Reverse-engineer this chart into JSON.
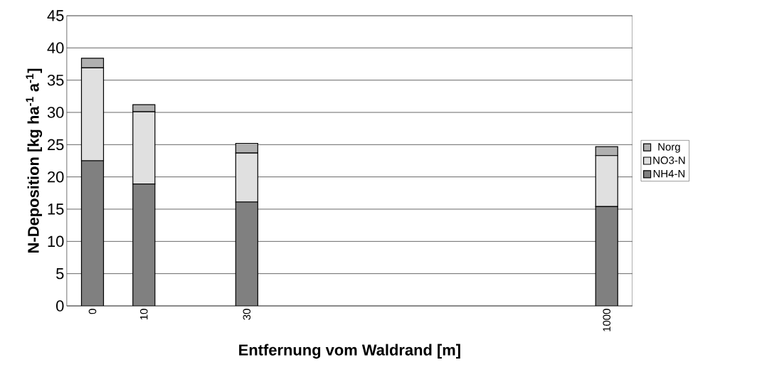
{
  "chart_data": {
    "type": "bar",
    "stacked": true,
    "xlabel": "Entfernung vom Waldrand [m]",
    "ylabel": "N-Deposition [kg ha$^{-1}$ a$^{-1}$]",
    "categories": [
      "0",
      "10",
      null,
      "30",
      null,
      null,
      null,
      null,
      null,
      null,
      "1000"
    ],
    "series": [
      {
        "name": "NH4-N",
        "color": "#808080",
        "values": [
          22.5,
          18.9,
          null,
          16.1,
          null,
          null,
          null,
          null,
          null,
          null,
          15.4
        ]
      },
      {
        "name": "NO3-N",
        "color": "#e0e0e0",
        "values": [
          14.4,
          11.2,
          null,
          7.6,
          null,
          null,
          null,
          null,
          null,
          null,
          7.9
        ]
      },
      {
        "name": "Norg",
        "color": "#b0b0b0",
        "values": [
          1.5,
          1.1,
          null,
          1.5,
          null,
          null,
          null,
          null,
          null,
          null,
          1.4
        ]
      }
    ],
    "ylim": [
      0,
      45
    ],
    "yticks": [
      0,
      5,
      10,
      15,
      20,
      25,
      30,
      35,
      40,
      45
    ],
    "grid": "y",
    "legend": "right"
  }
}
